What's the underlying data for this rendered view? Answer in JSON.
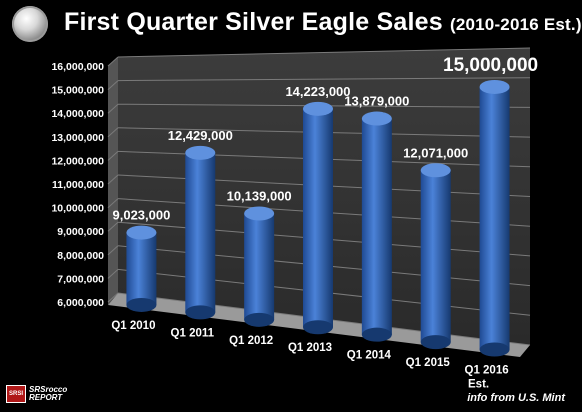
{
  "title": {
    "main": "First Quarter Silver Eagle Sales",
    "sub": "(2010-2016 Est.)"
  },
  "source": "info from U.S. Mint",
  "logo": {
    "box": "SRSI",
    "line1": "SRSrocco",
    "line2": "REPORT"
  },
  "icons": {
    "coin": "silver-eagle-coin-icon",
    "logo": "srsrocco-logo-icon"
  },
  "colors": {
    "bar": "#3a6fc4",
    "bar_top": "#5f91de",
    "background": "#000000",
    "wall": "#3a3a3a",
    "floor": "#9a9a9a"
  },
  "chart_data": {
    "type": "bar",
    "categories": [
      "Q1 2010",
      "Q1 2011",
      "Q1 2012",
      "Q1 2013",
      "Q1 2014",
      "Q1 2015",
      "Q1 2016\nEst."
    ],
    "values": [
      9023000,
      12429000,
      10139000,
      14223000,
      13879000,
      12071000,
      15000000
    ],
    "value_labels": [
      "9,023,000",
      "12,429,000",
      "10,139,000",
      "14,223,000",
      "13,879,000",
      "12,071,000",
      "15,000,000"
    ],
    "yticks": [
      "6,000,000",
      "7,000,000",
      "8,000,000",
      "9,000,000",
      "10,000,000",
      "11,000,000",
      "12,000,000",
      "13,000,000",
      "14,000,000",
      "15,000,000",
      "16,000,000"
    ],
    "ylim": [
      6000000,
      16000000
    ],
    "grid": true,
    "legend": "none"
  }
}
